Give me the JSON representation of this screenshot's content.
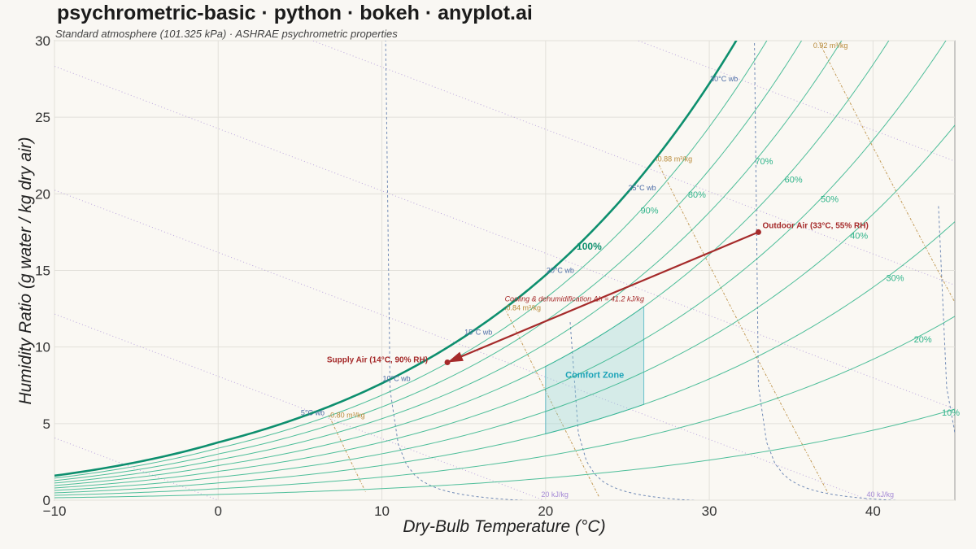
{
  "chart_data": {
    "type": "line",
    "title": "psychrometric-basic · python · bokeh · anyplot.ai",
    "subtitle": "Standard atmosphere (101.325 kPa) · ASHRAE psychrometric properties",
    "xlabel": "Dry-Bulb Temperature (°C)",
    "ylabel": "Humidity Ratio (g water / kg dry air)",
    "xlim": [
      -10,
      45
    ],
    "ylim": [
      0,
      30
    ],
    "x_ticks": [
      "−10",
      "0",
      "10",
      "20",
      "30",
      "40"
    ],
    "y_ticks": [
      "0",
      "5",
      "10",
      "15",
      "20",
      "25",
      "30"
    ],
    "grid": true,
    "colors": {
      "saturation": "#0d8f6e",
      "rh": "#2fb48a",
      "wetbulb": "#4f6fa8",
      "volume": "#b88a3a",
      "enthalpy": "#a58ad6",
      "process": "#a52a2a",
      "comfort": "#8fd3d3"
    },
    "rh_curves": [
      {
        "rh": 10,
        "label": "10%"
      },
      {
        "rh": 20,
        "label": "20%"
      },
      {
        "rh": 30,
        "label": "30%"
      },
      {
        "rh": 40,
        "label": "40%"
      },
      {
        "rh": 50,
        "label": "50%"
      },
      {
        "rh": 60,
        "label": "60%"
      },
      {
        "rh": 70,
        "label": "70%"
      },
      {
        "rh": 80,
        "label": "80%"
      },
      {
        "rh": 90,
        "label": "90%"
      },
      {
        "rh": 100,
        "label": "100%"
      }
    ],
    "wetbulb_lines": [
      {
        "twb": 5,
        "label": "5°C wb"
      },
      {
        "twb": 10,
        "label": "10°C wb"
      },
      {
        "twb": 15,
        "label": "15°C wb"
      },
      {
        "twb": 20,
        "label": "20°C wb"
      },
      {
        "twb": 25,
        "label": "25°C wb"
      },
      {
        "twb": 30,
        "label": "30°C wb"
      }
    ],
    "volume_lines": [
      {
        "v": 0.8,
        "label": "0.80 m³/kg"
      },
      {
        "v": 0.84,
        "label": "0.84 m³/kg"
      },
      {
        "v": 0.88,
        "label": "0.88 m³/kg"
      },
      {
        "v": 0.92,
        "label": "0.92 m³/kg"
      }
    ],
    "enthalpy_lines": [
      {
        "h": 0,
        "label": ""
      },
      {
        "h": 20,
        "label": "20 kJ/kg"
      },
      {
        "h": 40,
        "label": "40 kJ/kg"
      },
      {
        "h": 60,
        "label": ""
      },
      {
        "h": 80,
        "label": ""
      },
      {
        "h": 100,
        "label": ""
      }
    ],
    "comfort_zone": {
      "label": "Comfort Zone",
      "t_min": 20,
      "t_max": 26,
      "rh_min": 30,
      "rh_max": 60
    },
    "points": [
      {
        "name": "Outdoor Air",
        "label": "Outdoor Air (33°C, 55% RH)",
        "t": 33,
        "w": 17.5
      },
      {
        "name": "Supply Air",
        "label": "Supply Air (14°C, 90% RH)",
        "t": 14,
        "w": 9.0
      }
    ],
    "process": {
      "label": "Cooling & dehumidification  Δh = 41.2 kJ/kg",
      "from": "Outdoor Air",
      "to": "Supply Air"
    }
  }
}
